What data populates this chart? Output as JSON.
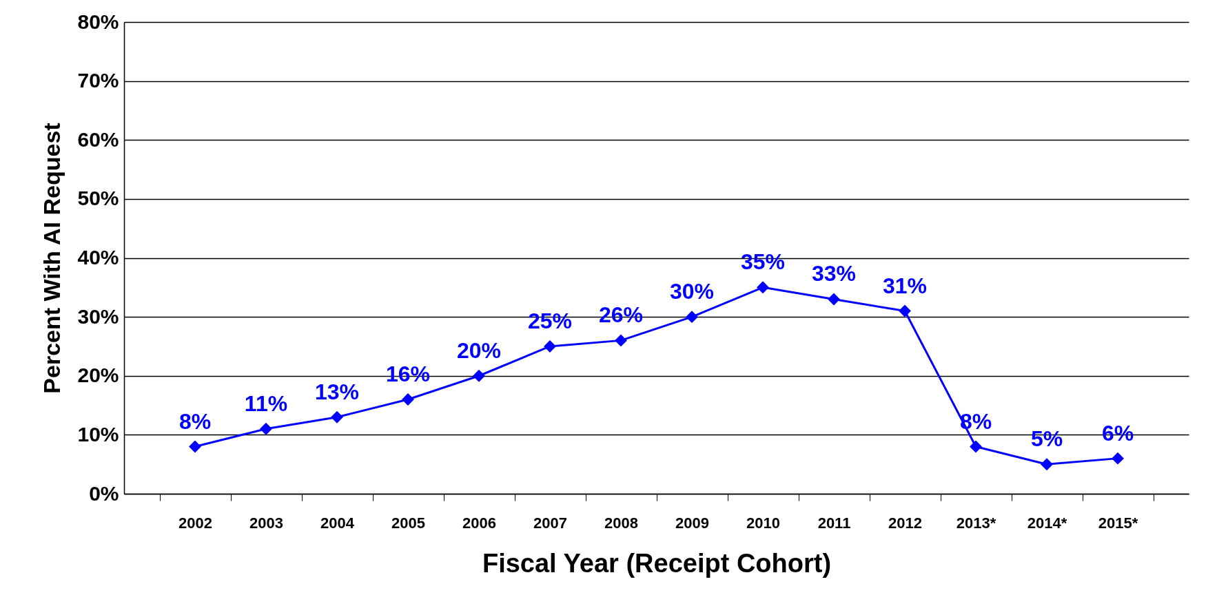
{
  "chart_data": {
    "type": "line",
    "xlabel": "Fiscal Year (Receipt Cohort)",
    "ylabel": "Percent With AI Request",
    "categories": [
      "2002",
      "2003",
      "2004",
      "2005",
      "2006",
      "2007",
      "2008",
      "2009",
      "2010",
      "2011",
      "2012",
      "2013*",
      "2014*",
      "2015*"
    ],
    "series": [
      {
        "color": "#0000ff",
        "values": [
          8,
          11,
          13,
          16,
          20,
          25,
          26,
          30,
          35,
          33,
          31,
          8,
          5,
          6
        ],
        "value_labels": [
          "8%",
          "11%",
          "13%",
          "16%",
          "20%",
          "25%",
          "26%",
          "30%",
          "35%",
          "33%",
          "31%",
          "8%",
          "5%",
          "6%"
        ]
      }
    ],
    "ylim": [
      0,
      80
    ],
    "yticks": [
      {
        "value": 0,
        "label": "0%"
      },
      {
        "value": 10,
        "label": "10%"
      },
      {
        "value": 20,
        "label": "20%"
      },
      {
        "value": 30,
        "label": "30%"
      },
      {
        "value": 40,
        "label": "40%"
      },
      {
        "value": 50,
        "label": "50%"
      },
      {
        "value": 60,
        "label": "60%"
      },
      {
        "value": 70,
        "label": "70%"
      },
      {
        "value": 80,
        "label": "80%"
      }
    ],
    "grid": "y",
    "marker": "diamond",
    "line_style": "solid"
  }
}
